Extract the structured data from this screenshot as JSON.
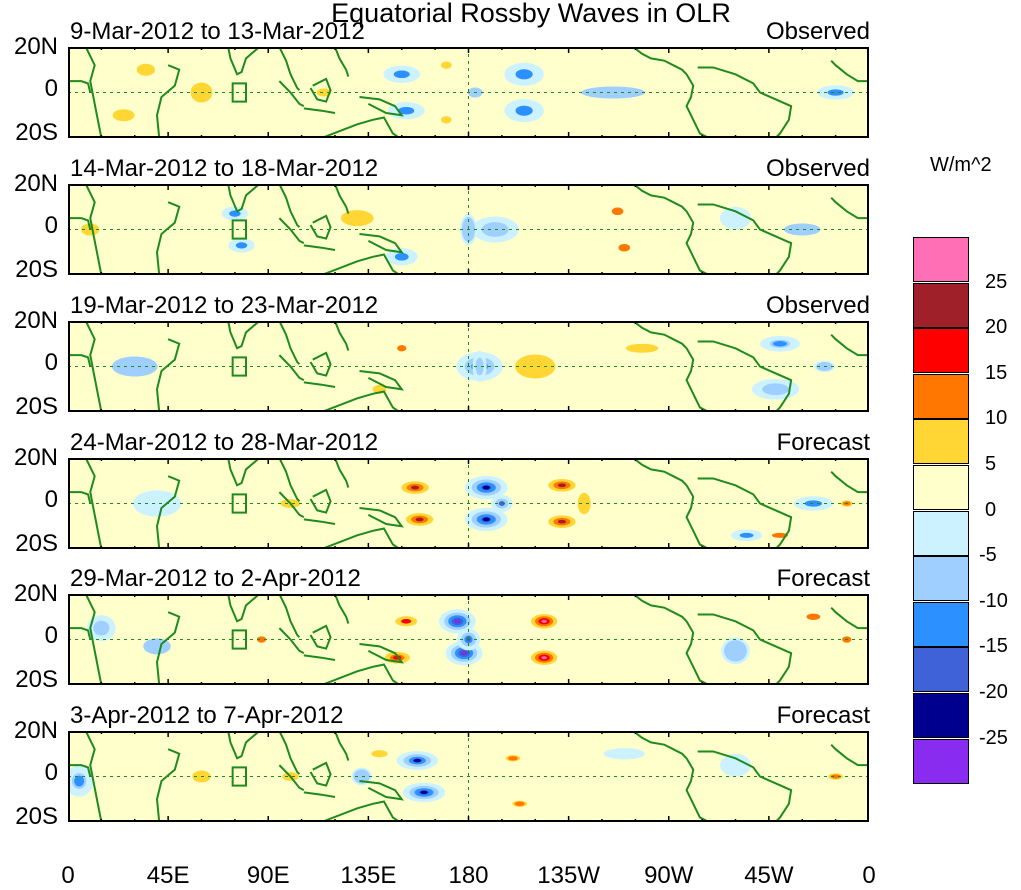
{
  "figure": {
    "title": "Equatorial Rossby Waves in OLR",
    "units_label": "W/m^2"
  },
  "chart_data": {
    "type": "heatmap",
    "title": "Equatorial Rossby Waves in OLR",
    "variable": "OLR anomaly",
    "units": "W/m^2",
    "x_ticks": [
      "0",
      "45E",
      "90E",
      "135E",
      "180",
      "135W",
      "90W",
      "45W",
      "0"
    ],
    "x_tick_lons": [
      0,
      45,
      90,
      135,
      180,
      225,
      270,
      315,
      360
    ],
    "xlim": [
      0,
      360
    ],
    "y_ticks": [
      "20N",
      "0",
      "20S"
    ],
    "y_tick_lats": [
      20,
      0,
      -20
    ],
    "ylim": [
      -20,
      20
    ],
    "colorbar": {
      "levels": [
        "25",
        "20",
        "15",
        "10",
        "5",
        "0",
        "-5",
        "-10",
        "-15",
        "-20",
        "-25"
      ],
      "colors": [
        "#ff6fb5",
        "#a0202a",
        "#ff0000",
        "#ff7700",
        "#ffd633",
        "#ffffcc",
        "#cdf2ff",
        "#9ecfff",
        "#2c90ff",
        "#3f62d8",
        "#00008f",
        "#8a2bf0"
      ]
    },
    "panels": [
      {
        "date_range": "9-Mar-2012 to 13-Mar-2012",
        "kind": "Observed",
        "blobs": [
          [
            150,
            8,
            14,
            6,
            -10
          ],
          [
            152,
            -8,
            14,
            6,
            -10
          ],
          [
            115,
            0,
            10,
            5,
            7
          ],
          [
            205,
            8,
            15,
            8,
            -10
          ],
          [
            205,
            -8,
            15,
            8,
            -10
          ],
          [
            183,
            0,
            8,
            5,
            -5
          ],
          [
            245,
            0,
            35,
            6,
            -5
          ],
          [
            60,
            0,
            12,
            10,
            5
          ],
          [
            35,
            10,
            10,
            6,
            5
          ],
          [
            25,
            -10,
            12,
            6,
            5
          ],
          [
            170,
            12,
            8,
            5,
            8
          ],
          [
            170,
            -12,
            8,
            5,
            8
          ],
          [
            300,
            0,
            25,
            12,
            3
          ],
          [
            345,
            0,
            14,
            5,
            -10
          ]
        ]
      },
      {
        "date_range": "14-Mar-2012 to 18-Mar-2012",
        "kind": "Observed",
        "blobs": [
          [
            75,
            7,
            10,
            5,
            -10
          ],
          [
            78,
            -7,
            10,
            5,
            -10
          ],
          [
            150,
            -12,
            12,
            6,
            -10
          ],
          [
            192,
            0,
            20,
            10,
            -8
          ],
          [
            180,
            0,
            8,
            14,
            -6
          ],
          [
            247,
            8,
            10,
            6,
            10
          ],
          [
            250,
            -8,
            10,
            6,
            10
          ],
          [
            130,
            5,
            18,
            8,
            5
          ],
          [
            100,
            5,
            14,
            8,
            3
          ],
          [
            10,
            0,
            10,
            6,
            5
          ],
          [
            330,
            0,
            20,
            6,
            -5
          ],
          [
            300,
            5,
            15,
            10,
            -4
          ]
        ]
      },
      {
        "date_range": "19-Mar-2012 to 23-Mar-2012",
        "kind": "Observed",
        "blobs": [
          [
            185,
            0,
            14,
            8,
            -18
          ],
          [
            185,
            0,
            6,
            12,
            -8
          ],
          [
            150,
            8,
            8,
            5,
            10
          ],
          [
            140,
            -10,
            10,
            6,
            8
          ],
          [
            210,
            0,
            22,
            12,
            5
          ],
          [
            258,
            8,
            20,
            5,
            6
          ],
          [
            30,
            0,
            25,
            10,
            -5
          ],
          [
            90,
            0,
            15,
            10,
            3
          ],
          [
            320,
            10,
            14,
            5,
            -12
          ],
          [
            318,
            -10,
            20,
            8,
            -8
          ],
          [
            340,
            0,
            10,
            5,
            -6
          ]
        ]
      },
      {
        "date_range": "24-Mar-2012 to 28-Mar-2012",
        "kind": "Forecast",
        "blobs": [
          [
            188,
            7,
            12,
            6,
            -22
          ],
          [
            188,
            -7,
            12,
            6,
            -22
          ],
          [
            195,
            0,
            7,
            5,
            -15
          ],
          [
            156,
            7,
            12,
            5,
            20
          ],
          [
            158,
            -7,
            12,
            5,
            20
          ],
          [
            222,
            8,
            12,
            5,
            20
          ],
          [
            222,
            -8,
            12,
            5,
            20
          ],
          [
            232,
            0,
            8,
            12,
            6
          ],
          [
            100,
            0,
            15,
            6,
            8
          ],
          [
            335,
            0,
            15,
            5,
            -10
          ],
          [
            350,
            0,
            8,
            4,
            12
          ],
          [
            305,
            -14,
            12,
            4,
            -10
          ],
          [
            320,
            -14,
            14,
            4,
            10
          ],
          [
            40,
            0,
            20,
            10,
            -3
          ]
        ]
      },
      {
        "date_range": "29-Mar-2012 to 2-Apr-2012",
        "kind": "Forecast",
        "blobs": [
          [
            175,
            8,
            10,
            6,
            -25
          ],
          [
            178,
            -6,
            10,
            6,
            -25
          ],
          [
            180,
            0,
            7,
            6,
            -18
          ],
          [
            152,
            8,
            12,
            5,
            15
          ],
          [
            148,
            -8,
            12,
            5,
            18
          ],
          [
            214,
            8,
            10,
            5,
            25
          ],
          [
            214,
            -8,
            10,
            5,
            25
          ],
          [
            87,
            0,
            8,
            5,
            10
          ],
          [
            335,
            10,
            12,
            5,
            10
          ],
          [
            350,
            0,
            8,
            5,
            10
          ],
          [
            15,
            5,
            12,
            10,
            -8
          ],
          [
            300,
            -5,
            14,
            12,
            -6
          ],
          [
            40,
            -3,
            15,
            8,
            -5
          ]
        ]
      },
      {
        "date_range": "3-Apr-2012 to 7-Apr-2012",
        "kind": "Forecast",
        "blobs": [
          [
            157,
            7,
            12,
            5,
            -20
          ],
          [
            160,
            -7,
            12,
            5,
            -22
          ],
          [
            132,
            0,
            10,
            8,
            -6
          ],
          [
            200,
            8,
            10,
            4,
            12
          ],
          [
            203,
            -12,
            10,
            4,
            12
          ],
          [
            140,
            10,
            10,
            4,
            6
          ],
          [
            5,
            -2,
            10,
            10,
            -12
          ],
          [
            345,
            0,
            10,
            4,
            12
          ],
          [
            300,
            5,
            15,
            10,
            -4
          ],
          [
            60,
            0,
            10,
            6,
            5
          ],
          [
            100,
            0,
            10,
            5,
            6
          ],
          [
            250,
            10,
            20,
            5,
            -4
          ]
        ]
      }
    ]
  }
}
